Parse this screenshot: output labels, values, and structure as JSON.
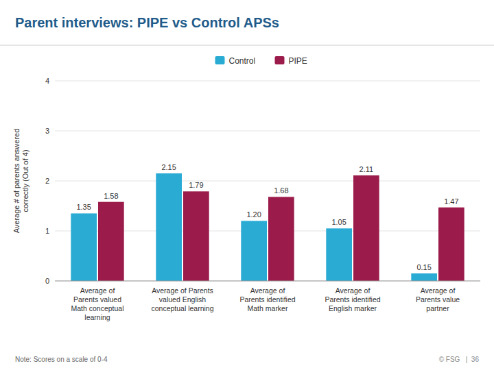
{
  "chart_data": {
    "type": "bar",
    "title": "Parent interviews: PIPE vs Control APSs",
    "categories": [
      "Average of\nParents valued\nMath conceptual\nlearning",
      "Average of Parents\nvalued English\nconceptual learning",
      "Average of\nParents identified\nMath marker",
      "Average of\nParents identified\nEnglish marker",
      "Average of\nParents value\npartner"
    ],
    "series": [
      {
        "name": "Control",
        "color": "#29ABD4",
        "values": [
          1.35,
          2.15,
          1.2,
          1.05,
          0.15
        ],
        "value_labels": [
          "1.35",
          "2.15",
          "1.20",
          "1.05",
          "0.15"
        ]
      },
      {
        "name": "PIPE",
        "color": "#9B1B4B",
        "values": [
          1.58,
          1.79,
          1.68,
          2.11,
          1.47
        ],
        "value_labels": [
          "1.58",
          "1.79",
          "1.68",
          "2.11",
          "1.47"
        ]
      }
    ],
    "ylabel": "Average # of parents answered\ncorrectly (Out of 4)",
    "ylim": [
      0,
      4
    ],
    "yticks": [
      0,
      1,
      2,
      3,
      4
    ],
    "grid": true,
    "legend": "top",
    "data_labels": true,
    "annotations": [
      "Note: Scores on a scale of 0-4",
      "© FSG   |  36"
    ]
  }
}
